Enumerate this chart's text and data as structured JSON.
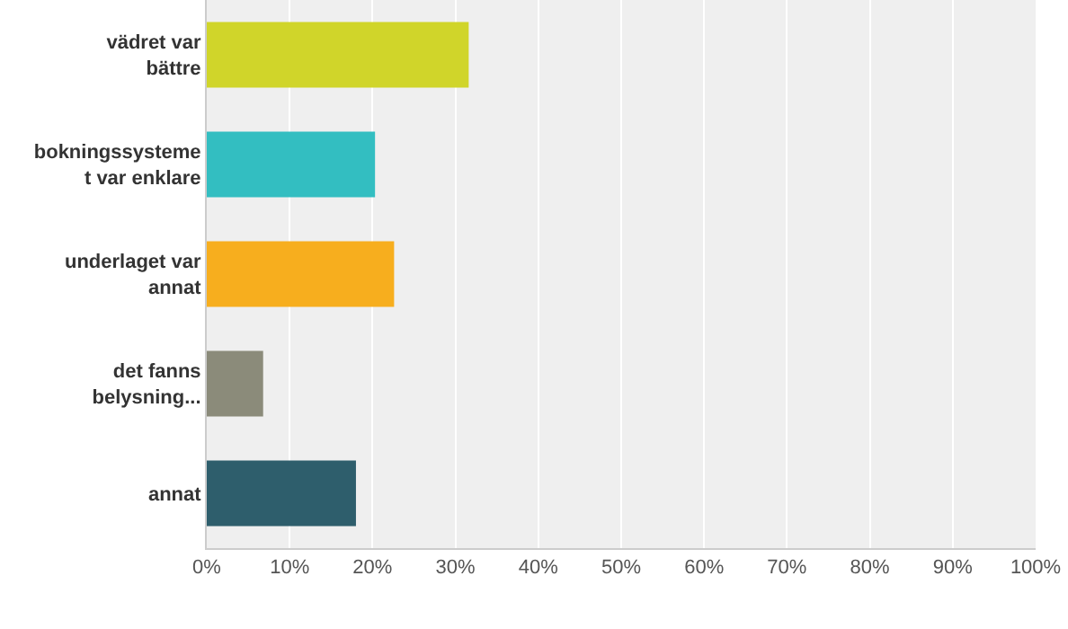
{
  "chart_data": {
    "type": "bar",
    "orientation": "horizontal",
    "categories": [
      "vädret var bättre",
      "bokningssystemet var enklare",
      "underlaget var annat",
      "det fanns belysning...",
      "annat"
    ],
    "values": [
      31.6,
      20.3,
      22.6,
      6.8,
      18.0
    ],
    "colors": [
      "#d0d52a",
      "#33bec1",
      "#f7ae1e",
      "#8b8b7a",
      "#2e5e6c"
    ],
    "xlim": [
      0,
      100
    ],
    "xticks": [
      {
        "value": 0,
        "label": "0%"
      },
      {
        "value": 10,
        "label": "10%"
      },
      {
        "value": 20,
        "label": "20%"
      },
      {
        "value": 30,
        "label": "30%"
      },
      {
        "value": 40,
        "label": "40%"
      },
      {
        "value": 50,
        "label": "50%"
      },
      {
        "value": 60,
        "label": "60%"
      },
      {
        "value": 70,
        "label": "70%"
      },
      {
        "value": 80,
        "label": "80%"
      },
      {
        "value": 90,
        "label": "90%"
      },
      {
        "value": 100,
        "label": "100%"
      }
    ],
    "grid": "x",
    "legend": false
  }
}
